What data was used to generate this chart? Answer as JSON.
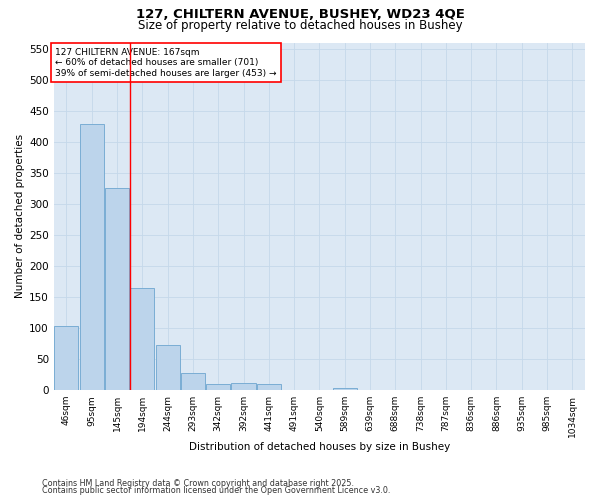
{
  "title_line1": "127, CHILTERN AVENUE, BUSHEY, WD23 4QE",
  "title_line2": "Size of property relative to detached houses in Bushey",
  "xlabel": "Distribution of detached houses by size in Bushey",
  "ylabel": "Number of detached properties",
  "categories": [
    "46sqm",
    "95sqm",
    "145sqm",
    "194sqm",
    "244sqm",
    "293sqm",
    "342sqm",
    "392sqm",
    "441sqm",
    "491sqm",
    "540sqm",
    "589sqm",
    "639sqm",
    "688sqm",
    "738sqm",
    "787sqm",
    "836sqm",
    "886sqm",
    "935sqm",
    "985sqm",
    "1034sqm"
  ],
  "values": [
    104,
    428,
    325,
    165,
    72,
    28,
    10,
    12,
    10,
    0,
    0,
    4,
    0,
    0,
    0,
    0,
    0,
    0,
    0,
    0,
    0
  ],
  "bar_color": "#bcd4eb",
  "bar_edge_color": "#7aadd4",
  "vline_x": 2.5,
  "annotation_line1": "127 CHILTERN AVENUE: 167sqm",
  "annotation_line2": "← 60% of detached houses are smaller (701)",
  "annotation_line3": "39% of semi-detached houses are larger (453) →",
  "ylim": [
    0,
    560
  ],
  "yticks": [
    0,
    50,
    100,
    150,
    200,
    250,
    300,
    350,
    400,
    450,
    500,
    550
  ],
  "grid_color": "#c5d8ea",
  "bg_color": "#dce8f4",
  "footnote_line1": "Contains HM Land Registry data © Crown copyright and database right 2025.",
  "footnote_line2": "Contains public sector information licensed under the Open Government Licence v3.0."
}
